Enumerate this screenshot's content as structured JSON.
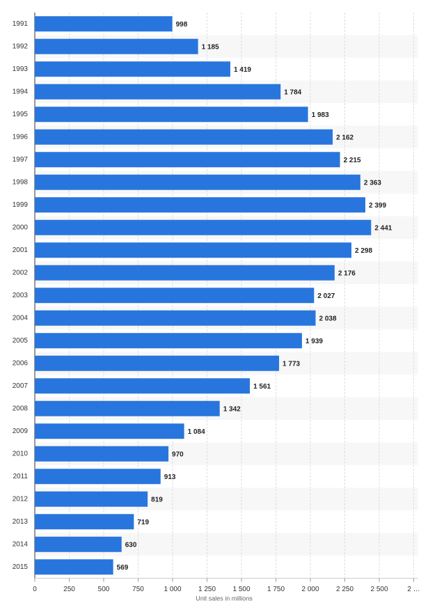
{
  "chart_data": {
    "type": "barh",
    "categories": [
      "1991",
      "1992",
      "1993",
      "1994",
      "1995",
      "1996",
      "1997",
      "1998",
      "1999",
      "2000",
      "2001",
      "2002",
      "2003",
      "2004",
      "2005",
      "2006",
      "2007",
      "2008",
      "2009",
      "2010",
      "2011",
      "2012",
      "2013",
      "2014",
      "2015"
    ],
    "values": [
      998,
      1185,
      1419,
      1784,
      1983,
      2162,
      2215,
      2363,
      2399,
      2441,
      2298,
      2176,
      2027,
      2038,
      1939,
      1773,
      1561,
      1342,
      1084,
      970,
      913,
      819,
      719,
      630,
      569
    ],
    "value_labels": [
      "998",
      "1 185",
      "1 419",
      "1 784",
      "1 983",
      "2 162",
      "2 215",
      "2 363",
      "2 399",
      "2 441",
      "2 298",
      "2 176",
      "2 027",
      "2 038",
      "1 939",
      "1 773",
      "1 561",
      "1 342",
      "1 084",
      "970",
      "913",
      "819",
      "719",
      "630",
      "569"
    ],
    "color": "#2876dd",
    "xlim": [
      0,
      2750
    ],
    "xticks": [
      0,
      250,
      500,
      750,
      {
        "value": 1000,
        "label": "1 000"
      },
      {
        "value": 1250,
        "label": "1 250"
      },
      {
        "value": 1500,
        "label": "1 500"
      },
      {
        "value": 1750,
        "label": "1 750"
      },
      {
        "value": 2000,
        "label": "2 000"
      },
      {
        "value": 2250,
        "label": "2 250"
      },
      {
        "value": 2500,
        "label": "2 500"
      },
      {
        "value": 2750,
        "label": "2 …"
      }
    ],
    "xlabel": "Unit sales in millions",
    "grid": true
  }
}
